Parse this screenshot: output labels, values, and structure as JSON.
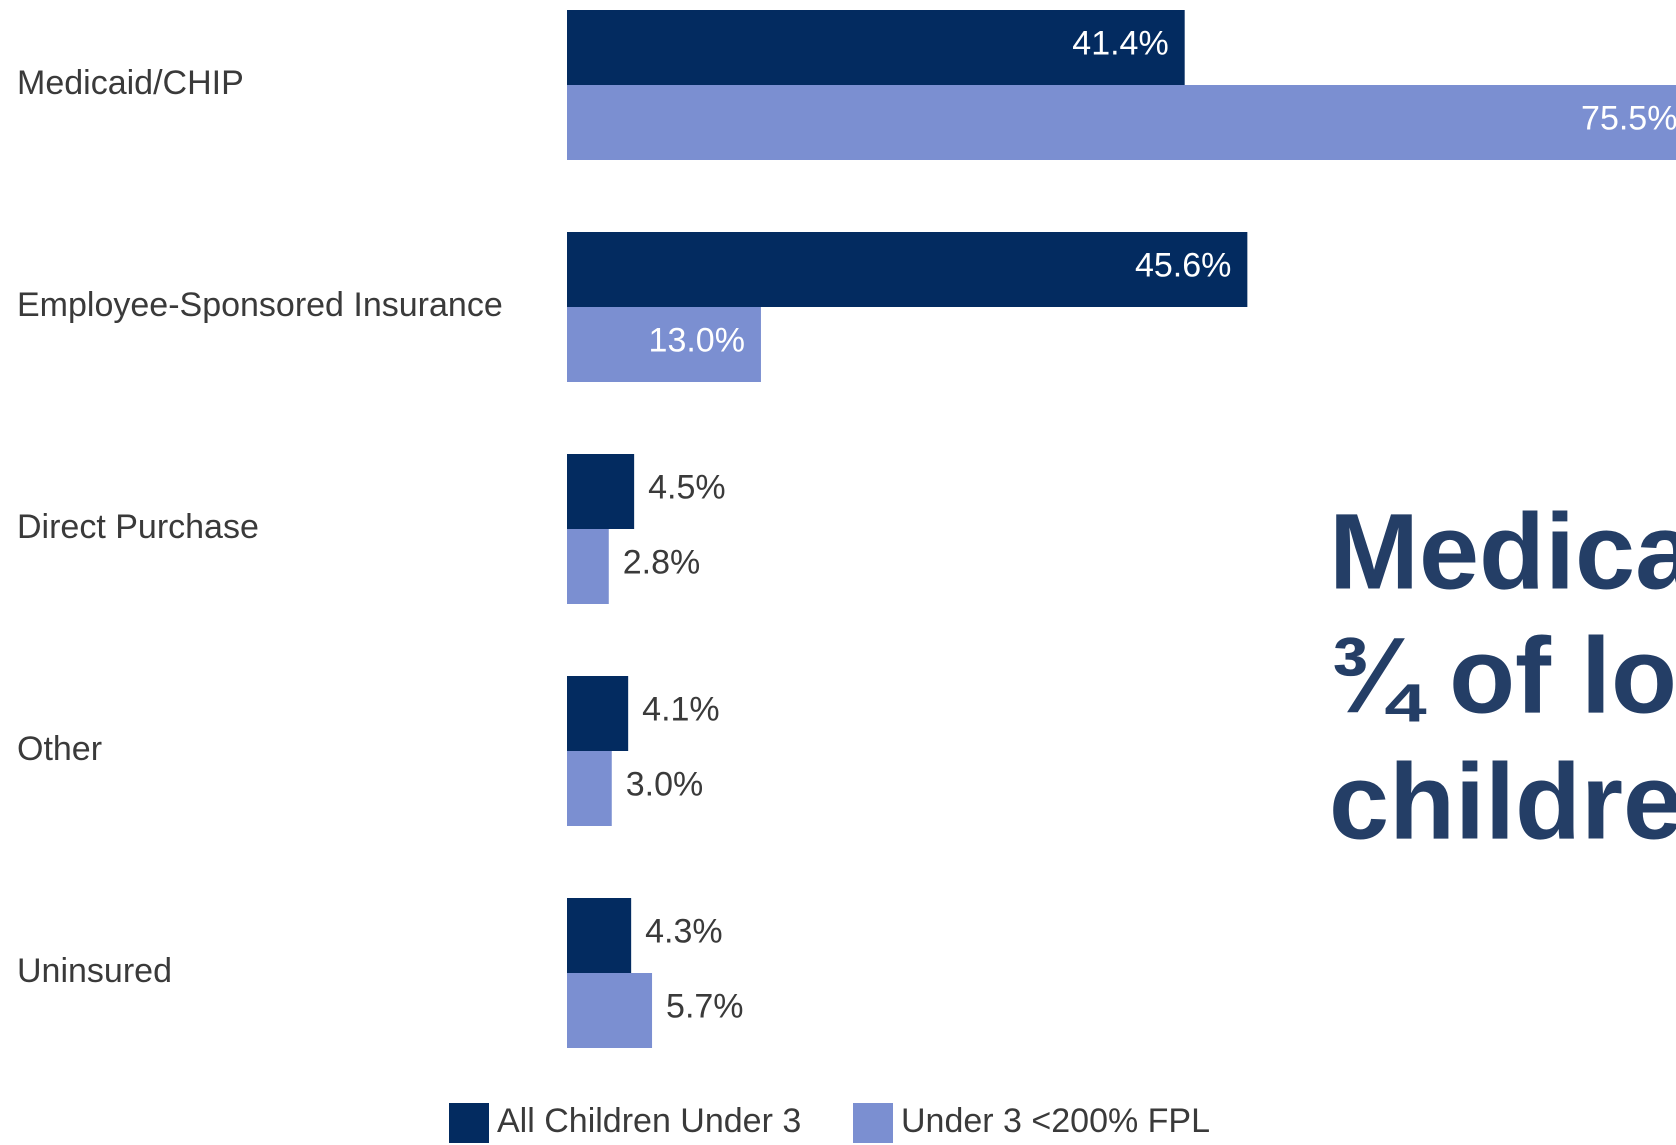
{
  "chart_data": {
    "type": "bar",
    "orientation": "horizontal",
    "categories": [
      "Medicaid/CHIP",
      "Employee-Sponsored Insurance",
      "Direct Purchase",
      "Other",
      "Uninsured"
    ],
    "series": [
      {
        "name": "All Children Under 3",
        "color": "#032b60",
        "values": [
          41.4,
          45.6,
          4.5,
          4.1,
          4.3
        ],
        "value_labels": [
          "41.4%",
          "45.6%",
          "4.5%",
          "4.1%",
          "4.3%"
        ]
      },
      {
        "name": "Under 3 <200% FPL",
        "color": "#7b8fd1",
        "values": [
          75.5,
          13.0,
          2.8,
          3.0,
          5.7
        ],
        "value_labels": [
          "75.5%",
          "13.0%",
          "2.8%",
          "3.0%",
          "5.7%"
        ]
      }
    ],
    "annotations": [
      "Medica",
      "¾ of lo",
      "childre"
    ]
  }
}
